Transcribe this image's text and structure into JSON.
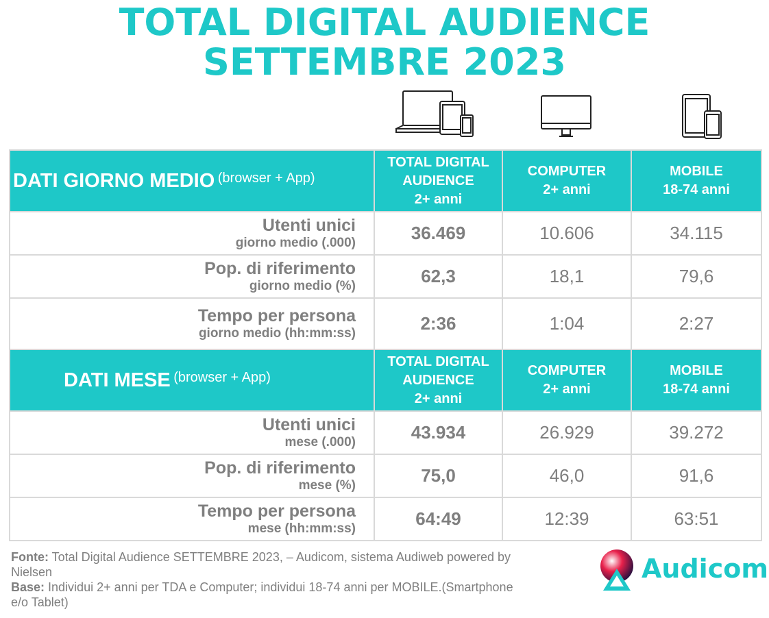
{
  "title": {
    "line1": "TOTAL DIGITAL AUDIENCE",
    "line2": "SETTEMBRE 2023"
  },
  "icons": {
    "total": "multi-device-icon",
    "computer": "desktop-monitor-icon",
    "mobile": "tablet-smartphone-icon"
  },
  "section_day": {
    "label": "DATI GIORNO MEDIO",
    "suffix": "(browser + App)",
    "columns": [
      {
        "l1": "TOTAL DIGITAL",
        "l2": "AUDIENCE",
        "l3": "2+ anni"
      },
      {
        "l1": "COMPUTER",
        "l2": "2+ anni"
      },
      {
        "l1": "MOBILE",
        "l2": "18-74 anni"
      }
    ],
    "rows": [
      {
        "label": "Utenti unici",
        "sub": "giorno medio (.000)",
        "values": [
          "36.469",
          "10.606",
          "34.115"
        ]
      },
      {
        "label": "Pop. di riferimento",
        "sub": "giorno medio (%)",
        "values": [
          "62,3",
          "18,1",
          "79,6"
        ]
      },
      {
        "label": "Tempo per persona",
        "sub": "giorno medio (hh:mm:ss)",
        "values": [
          "2:36",
          "1:04",
          "2:27"
        ]
      }
    ]
  },
  "section_month": {
    "label": "DATI MESE",
    "suffix": "(browser + App)",
    "columns": [
      {
        "l1": "TOTAL DIGITAL",
        "l2": "AUDIENCE",
        "l3": "2+ anni"
      },
      {
        "l1": "COMPUTER",
        "l2": "2+ anni"
      },
      {
        "l1": "MOBILE",
        "l2": "18-74 anni"
      }
    ],
    "rows": [
      {
        "label": "Utenti unici",
        "sub": "mese (.000)",
        "values": [
          "43.934",
          "26.929",
          "39.272"
        ]
      },
      {
        "label": "Pop. di riferimento",
        "sub": "mese (%)",
        "values": [
          "75,0",
          "46,0",
          "91,6"
        ]
      },
      {
        "label": "Tempo per persona",
        "sub": "mese (hh:mm:ss)",
        "values": [
          "64:49",
          "12:39",
          "63:51"
        ]
      }
    ]
  },
  "footer": {
    "fonte_label": "Fonte:",
    "fonte_text": " Total Digital Audience SETTEMBRE 2023, – Audicom, sistema Audiweb powered by Nielsen",
    "base_label": "Base:",
    "base_text": "  Individui 2+ anni per TDA e Computer; individui 18-74 anni per MOBILE.(Smartphone e/o Tablet)"
  },
  "logo": {
    "text": "Audicom",
    "icon": "audicom-logo-icon"
  },
  "colors": {
    "accent": "#1ec8c8",
    "text": "#7f7f7f",
    "border": "#d9d9d9"
  }
}
